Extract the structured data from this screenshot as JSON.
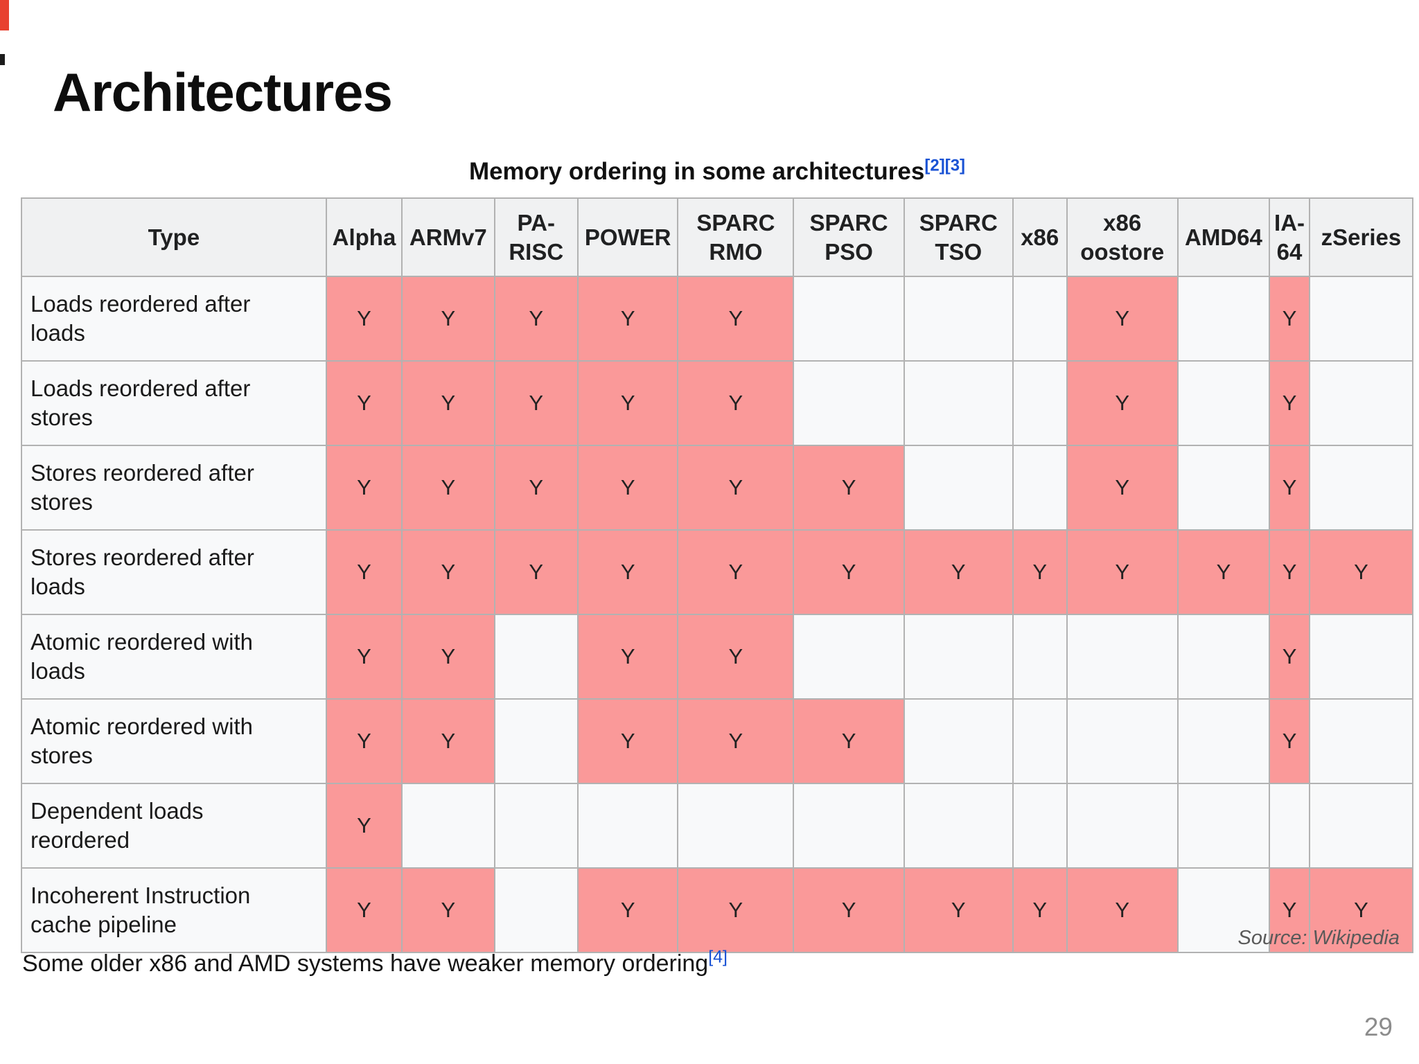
{
  "slide": {
    "title": "Architectures",
    "page_number": "29",
    "source_note": "Source: Wikipedia",
    "footnote_text": "Some older x86 and AMD systems have weaker memory ordering",
    "footnote_ref": "[4]"
  },
  "table": {
    "caption_text": "Memory ordering in some architectures",
    "caption_refs": [
      "[2]",
      "[3]"
    ],
    "columns": [
      "Type",
      "Alpha",
      "ARMv7",
      "PA-RISC",
      "POWER",
      "SPARC RMO",
      "SPARC PSO",
      "SPARC TSO",
      "x86",
      "x86 oostore",
      "AMD64",
      "IA-64",
      "zSeries"
    ],
    "yes_label": "Y",
    "rows": [
      {
        "label": "Loads reordered after loads",
        "cells": [
          "Y",
          "Y",
          "Y",
          "Y",
          "Y",
          "",
          "",
          "",
          "Y",
          "",
          "Y",
          ""
        ]
      },
      {
        "label": "Loads reordered after stores",
        "cells": [
          "Y",
          "Y",
          "Y",
          "Y",
          "Y",
          "",
          "",
          "",
          "Y",
          "",
          "Y",
          ""
        ]
      },
      {
        "label": "Stores reordered after stores",
        "cells": [
          "Y",
          "Y",
          "Y",
          "Y",
          "Y",
          "Y",
          "",
          "",
          "Y",
          "",
          "Y",
          ""
        ]
      },
      {
        "label": "Stores reordered after loads",
        "cells": [
          "Y",
          "Y",
          "Y",
          "Y",
          "Y",
          "Y",
          "Y",
          "Y",
          "Y",
          "Y",
          "Y",
          "Y"
        ]
      },
      {
        "label": "Atomic reordered with loads",
        "cells": [
          "Y",
          "Y",
          "",
          "Y",
          "Y",
          "",
          "",
          "",
          "",
          "",
          "Y",
          ""
        ]
      },
      {
        "label": "Atomic reordered with stores",
        "cells": [
          "Y",
          "Y",
          "",
          "Y",
          "Y",
          "Y",
          "",
          "",
          "",
          "",
          "Y",
          ""
        ]
      },
      {
        "label": "Dependent loads reordered",
        "cells": [
          "Y",
          "",
          "",
          "",
          "",
          "",
          "",
          "",
          "",
          "",
          "",
          ""
        ]
      },
      {
        "label": "Incoherent Instruction cache pipeline",
        "cells": [
          "Y",
          "Y",
          "",
          "Y",
          "Y",
          "Y",
          "Y",
          "Y",
          "Y",
          "",
          "Y",
          "Y"
        ]
      }
    ],
    "colors": {
      "yes_bg": "#fa9999",
      "link_blue": "#1952d4",
      "header_bg": "#f0f1f2",
      "empty_bg": "#f8f9fa",
      "border": "#b2b2b2"
    }
  }
}
